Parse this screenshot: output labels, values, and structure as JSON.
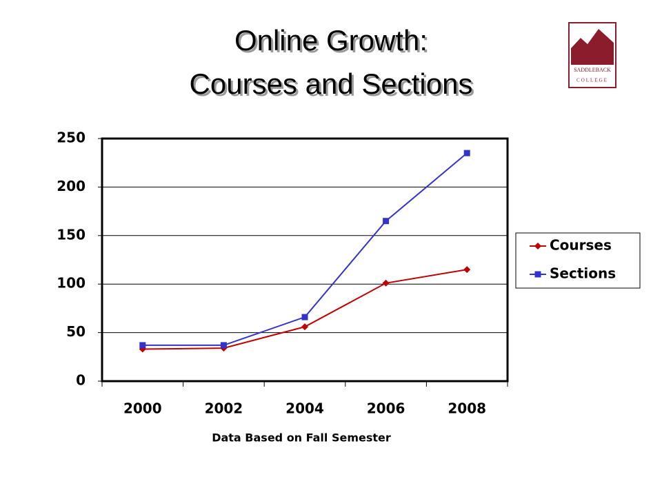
{
  "logo": {
    "name": "SADDLEBACK",
    "subtitle": "COLLEGE"
  },
  "chart_data": {
    "type": "line",
    "title": [
      "Online Growth:",
      "Courses and Sections"
    ],
    "x_label": "Data Based on Fall Semester",
    "categories": [
      "2000",
      "2002",
      "2004",
      "2006",
      "2008"
    ],
    "series": [
      {
        "name": "Courses",
        "color": "#c00000",
        "marker": "diamond",
        "values": [
          33,
          34,
          56,
          101,
          115
        ]
      },
      {
        "name": "Sections",
        "color": "#3333cc",
        "marker": "square",
        "values": [
          37,
          37,
          66,
          165,
          235
        ]
      }
    ],
    "ylim": [
      0,
      250
    ],
    "yticks": [
      0,
      50,
      100,
      150,
      200,
      250
    ],
    "grid": true,
    "legend": "right"
  }
}
